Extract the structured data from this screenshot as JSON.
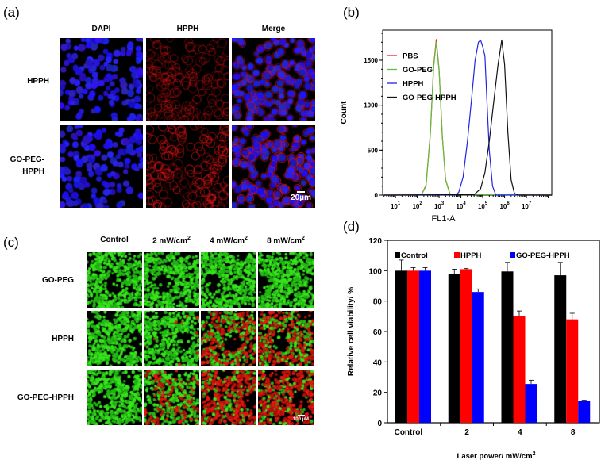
{
  "panel_a": {
    "label": "(a)",
    "columns": [
      "DAPI",
      "HPPH",
      "Merge"
    ],
    "rows": [
      {
        "label": "HPPH"
      },
      {
        "label_line1": "GO-PEG-",
        "label_line2": "HPPH"
      }
    ],
    "scale_bar": "20µm"
  },
  "panel_b": {
    "label": "(b)"
  },
  "panel_c": {
    "label": "(c)",
    "columns": [
      "Control",
      "2 mW/cm",
      "4 mW/cm",
      "8 mW/cm"
    ],
    "column_sup": [
      "",
      "2",
      "2",
      "2"
    ],
    "rows": [
      "GO-PEG",
      "HPPH",
      "GO-PEG-HPPH"
    ],
    "scale_bar": "100 µM",
    "live_color": "#2ecc1a",
    "dead_color": "#e3170f"
  },
  "panel_d": {
    "label": "(d)"
  },
  "chart_data": [
    {
      "type": "line",
      "panel": "b",
      "xlabel": "FL1-A",
      "ylabel": "Count",
      "xscale": "log",
      "xlim": [
        2.6,
        145000000
      ],
      "ylim": [
        0,
        1835
      ],
      "yticks": [
        0,
        500,
        1000,
        1500
      ],
      "xtick_base": "10",
      "xtick_exponents": [
        "1",
        "2",
        "3",
        "4",
        "5",
        "6",
        "7"
      ],
      "legend_position": "top-left",
      "series": [
        {
          "name": "PBS",
          "color": "#e8262a",
          "x": [
            3,
            79,
            158,
            251,
            398,
            562,
            741,
            1000,
            1413,
            1995,
            3162,
            145000000
          ],
          "y": [
            0,
            0,
            6,
            109,
            692,
            1436,
            1730,
            1393,
            645,
            170,
            12,
            0
          ]
        },
        {
          "name": "GO-PEG",
          "color": "#5cc23a",
          "x": [
            3,
            79,
            158,
            251,
            398,
            562,
            741,
            1000,
            1413,
            1995,
            3162,
            145000000
          ],
          "y": [
            0,
            0,
            5,
            100,
            680,
            1420,
            1700,
            1380,
            640,
            165,
            10,
            0
          ]
        },
        {
          "name": "HPPH",
          "color": "#2323e6",
          "x": [
            3,
            5012,
            7943,
            12589,
            19953,
            31623,
            44668,
            63096,
            79433,
            100000,
            112202,
            125893,
            158489,
            199526,
            281838,
            398107,
            145000000
          ],
          "y": [
            0,
            0,
            30,
            200,
            600,
            1100,
            1500,
            1700,
            1725,
            1650,
            1600,
            1550,
            1000,
            500,
            100,
            0,
            0
          ]
        },
        {
          "name": "GO-PEG-HPPH",
          "color": "#111111",
          "x": [
            3,
            39811,
            79433,
            125893,
            199526,
            316228,
            501187,
            741310,
            1000000,
            1412538,
            1995262,
            2818383,
            3981072,
            145000000
          ],
          "y": [
            0,
            5,
            70,
            250,
            600,
            1030,
            1450,
            1725,
            1450,
            700,
            170,
            20,
            0,
            0
          ]
        }
      ]
    },
    {
      "type": "bar",
      "panel": "d",
      "xlabel": "Laser power/  mW/cm",
      "xlabel_sup": "2",
      "ylabel": "Relative cell viability/ %",
      "categories": [
        "Control",
        "2",
        "4",
        "8"
      ],
      "ylim": [
        0,
        120
      ],
      "yticks": [
        0,
        20,
        40,
        60,
        80,
        100,
        120
      ],
      "legend_position": "top",
      "series": [
        {
          "name": "Control",
          "color": "#000000",
          "values": [
            100,
            98,
            99.5,
            97
          ],
          "errors": [
            7,
            3,
            6,
            8.5
          ]
        },
        {
          "name": "HPPH",
          "color": "#ff0000",
          "values": [
            100,
            101,
            70,
            68
          ],
          "errors": [
            2,
            0.4,
            3.5,
            4
          ]
        },
        {
          "name": "GO-PEG-HPPH",
          "color": "#0000ff",
          "values": [
            100,
            86,
            25.5,
            14.5
          ],
          "errors": [
            2,
            2,
            2.5,
            0.3
          ]
        }
      ]
    }
  ]
}
